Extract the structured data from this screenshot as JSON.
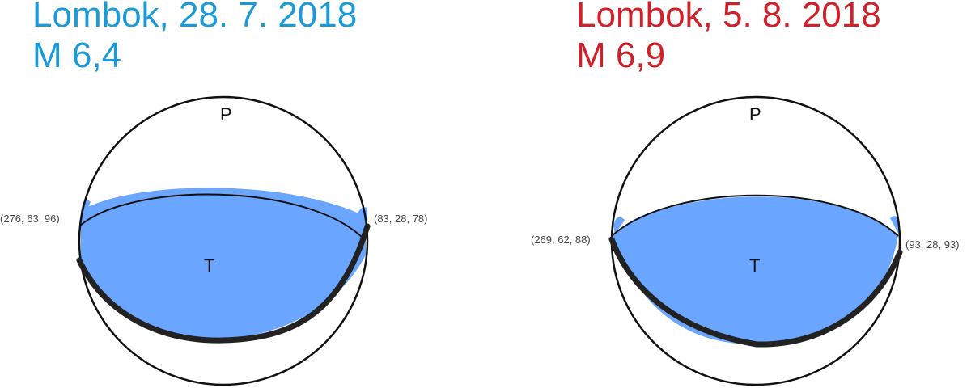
{
  "events": [
    {
      "title": "Lombok, 28. 7. 2018",
      "magnitude": "M 6,4",
      "color": "#1a9ad6",
      "p_label": "P",
      "t_label": "T",
      "nodal_left": "(276, 63, 96)",
      "nodal_right": "(83, 28, 78)"
    },
    {
      "title": "Lombok, 5. 8. 2018",
      "magnitude": "M 6,9",
      "color": "#d0202a",
      "p_label": "P",
      "t_label": "T",
      "nodal_left": "(269, 62, 88)",
      "nodal_right": "(93, 28, 93)"
    }
  ],
  "fill_color": "#6aa6ff"
}
